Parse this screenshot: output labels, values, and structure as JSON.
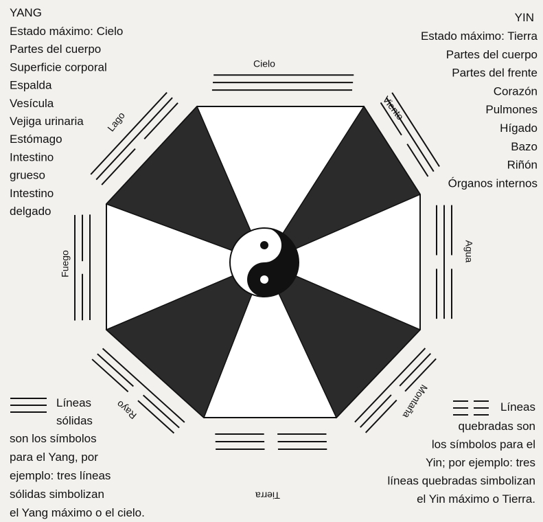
{
  "yang": {
    "title": "YANG",
    "lines": [
      "Estado máximo: Cielo",
      "Partes del cuerpo",
      "Superficie corporal",
      "Espalda",
      "Vesícula",
      "Vejiga urinaria",
      "Estómago",
      "Intestino",
      "grueso",
      "Intestino",
      "delgado"
    ]
  },
  "yin": {
    "title": "YIN",
    "lines": [
      "Estado máximo: Tierra",
      "Partes del cuerpo",
      "Partes del frente",
      "Corazón",
      "Pulmones",
      "Hígado",
      "Bazo",
      "Riñón",
      "Órganos internos"
    ]
  },
  "trigrams": [
    "Cielo",
    "Viento",
    "Agua",
    "Montaña",
    "Tierra",
    "Rayo",
    "Fuego",
    "Lago"
  ],
  "legend_yang": [
    "Líneas",
    "sólidas",
    "son los símbolos",
    "para el Yang, por",
    "ejemplo: tres líneas",
    "sólidas simbolizan",
    "el Yang máximo o el cielo."
  ],
  "legend_yin": [
    "Líneas",
    "quebradas son",
    "los símbolos para el",
    "Yin; por ejemplo: tres",
    "líneas quebradas simbolizan",
    "el Yin máximo o Tierra."
  ]
}
